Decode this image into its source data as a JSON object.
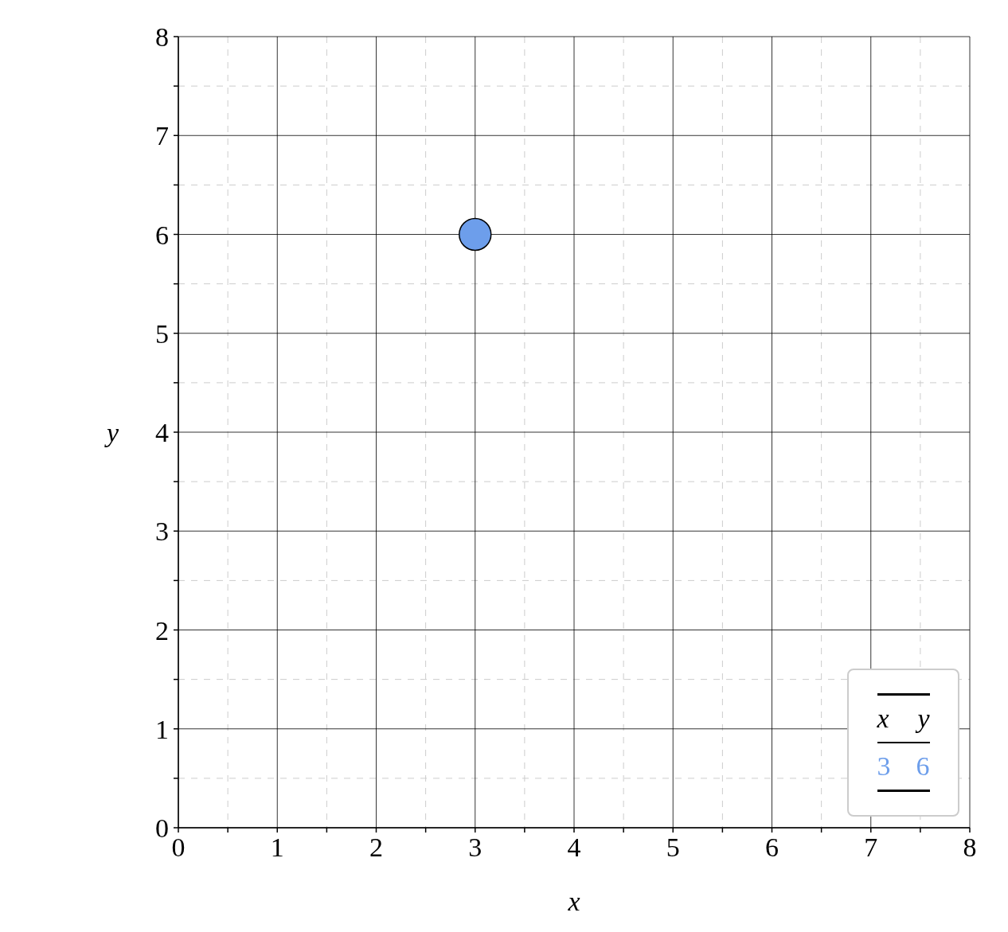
{
  "chart_data": {
    "type": "scatter",
    "xlabel": "x",
    "ylabel": "y",
    "x": [
      3
    ],
    "series": [
      {
        "color": "#6d9eeb",
        "values": [
          6
        ]
      }
    ],
    "xlim": [
      0,
      8
    ],
    "ylim": [
      0,
      8
    ],
    "xticks": [
      0,
      {
        "value": 0.5,
        "label": null
      },
      1,
      {
        "value": 1.5,
        "label": null
      },
      2,
      {
        "value": 2.5,
        "label": null
      },
      3,
      {
        "value": 3.5,
        "label": null
      },
      4,
      {
        "value": 4.5,
        "label": null
      },
      5,
      {
        "value": 5.5,
        "label": null
      },
      6,
      {
        "value": 6.5,
        "label": null
      },
      7,
      {
        "value": 7.5,
        "label": null
      },
      8
    ],
    "yticks": [
      0,
      {
        "value": 0.5,
        "label": null
      },
      1,
      {
        "value": 1.5,
        "label": null
      },
      2,
      {
        "value": 2.5,
        "label": null
      },
      3,
      {
        "value": 3.5,
        "label": null
      },
      4,
      {
        "value": 4.5,
        "label": null
      },
      5,
      {
        "value": 5.5,
        "label": null
      },
      6,
      {
        "value": 6.5,
        "label": null
      },
      7,
      {
        "value": 7.5,
        "label": null
      },
      8
    ],
    "grid": true,
    "marker": "circle",
    "annotations": [
      "x",
      "y",
      "3",
      "6"
    ]
  }
}
